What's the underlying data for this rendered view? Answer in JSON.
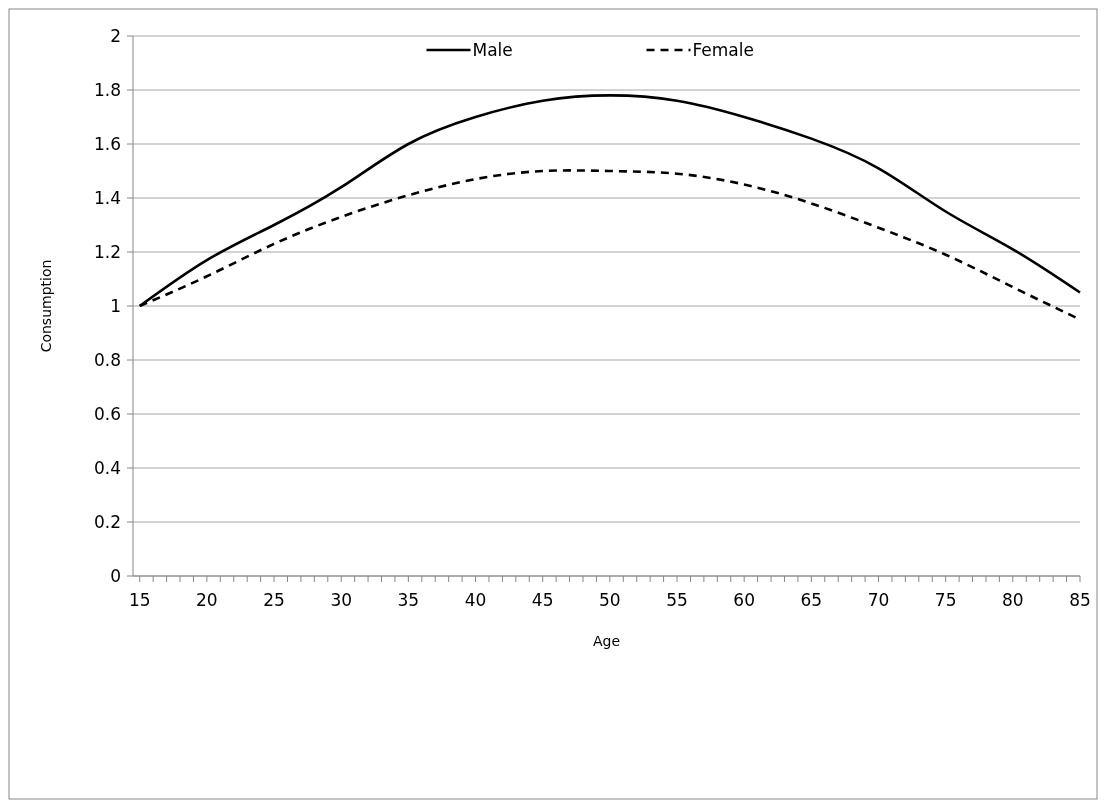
{
  "chart_data": {
    "type": "line",
    "xlabel": "Age",
    "ylabel": "Consumption",
    "x": [
      15,
      20,
      25,
      30,
      35,
      40,
      45,
      50,
      55,
      60,
      65,
      70,
      75,
      80,
      85
    ],
    "series": [
      {
        "name": "Male",
        "color": "#000000",
        "line_style": "solid",
        "values": [
          1.0,
          1.17,
          1.3,
          1.44,
          1.6,
          1.7,
          1.76,
          1.78,
          1.76,
          1.7,
          1.62,
          1.51,
          1.35,
          1.21,
          1.05
        ]
      },
      {
        "name": "Female",
        "color": "#000000",
        "line_style": "dashed",
        "values": [
          1.0,
          1.11,
          1.23,
          1.33,
          1.41,
          1.47,
          1.5,
          1.5,
          1.49,
          1.45,
          1.38,
          1.29,
          1.19,
          1.07,
          0.95
        ]
      }
    ],
    "xlim": [
      14.5,
      85
    ],
    "xticks": [
      15,
      {
        "value": 16,
        "label": null
      },
      {
        "value": 17,
        "label": null
      },
      {
        "value": 18,
        "label": null
      },
      {
        "value": 19,
        "label": null
      },
      20,
      {
        "value": 21,
        "label": null
      },
      {
        "value": 22,
        "label": null
      },
      {
        "value": 23,
        "label": null
      },
      {
        "value": 24,
        "label": null
      },
      25,
      {
        "value": 26,
        "label": null
      },
      {
        "value": 27,
        "label": null
      },
      {
        "value": 28,
        "label": null
      },
      {
        "value": 29,
        "label": null
      },
      30,
      {
        "value": 31,
        "label": null
      },
      {
        "value": 32,
        "label": null
      },
      {
        "value": 33,
        "label": null
      },
      {
        "value": 34,
        "label": null
      },
      35,
      {
        "value": 36,
        "label": null
      },
      {
        "value": 37,
        "label": null
      },
      {
        "value": 38,
        "label": null
      },
      {
        "value": 39,
        "label": null
      },
      40,
      {
        "value": 41,
        "label": null
      },
      {
        "value": 42,
        "label": null
      },
      {
        "value": 43,
        "label": null
      },
      {
        "value": 44,
        "label": null
      },
      45,
      {
        "value": 46,
        "label": null
      },
      {
        "value": 47,
        "label": null
      },
      {
        "value": 48,
        "label": null
      },
      {
        "value": 49,
        "label": null
      },
      50,
      {
        "value": 51,
        "label": null
      },
      {
        "value": 52,
        "label": null
      },
      {
        "value": 53,
        "label": null
      },
      {
        "value": 54,
        "label": null
      },
      55,
      {
        "value": 56,
        "label": null
      },
      {
        "value": 57,
        "label": null
      },
      {
        "value": 58,
        "label": null
      },
      {
        "value": 59,
        "label": null
      },
      60,
      {
        "value": 61,
        "label": null
      },
      {
        "value": 62,
        "label": null
      },
      {
        "value": 63,
        "label": null
      },
      {
        "value": 64,
        "label": null
      },
      65,
      {
        "value": 66,
        "label": null
      },
      {
        "value": 67,
        "label": null
      },
      {
        "value": 68,
        "label": null
      },
      {
        "value": 69,
        "label": null
      },
      70,
      {
        "value": 71,
        "label": null
      },
      {
        "value": 72,
        "label": null
      },
      {
        "value": 73,
        "label": null
      },
      {
        "value": 74,
        "label": null
      },
      75,
      {
        "value": 76,
        "label": null
      },
      {
        "value": 77,
        "label": null
      },
      {
        "value": 78,
        "label": null
      },
      {
        "value": 79,
        "label": null
      },
      80,
      {
        "value": 81,
        "label": null
      },
      {
        "value": 82,
        "label": null
      },
      {
        "value": 83,
        "label": null
      },
      {
        "value": 84,
        "label": null
      },
      85
    ],
    "ylim": [
      0,
      2
    ],
    "yticks": [
      0,
      0.2,
      0.4,
      0.6,
      0.8,
      1,
      1.2,
      1.4,
      1.6,
      1.8,
      2
    ],
    "grid": "y",
    "legend": "top",
    "marker": "none"
  }
}
